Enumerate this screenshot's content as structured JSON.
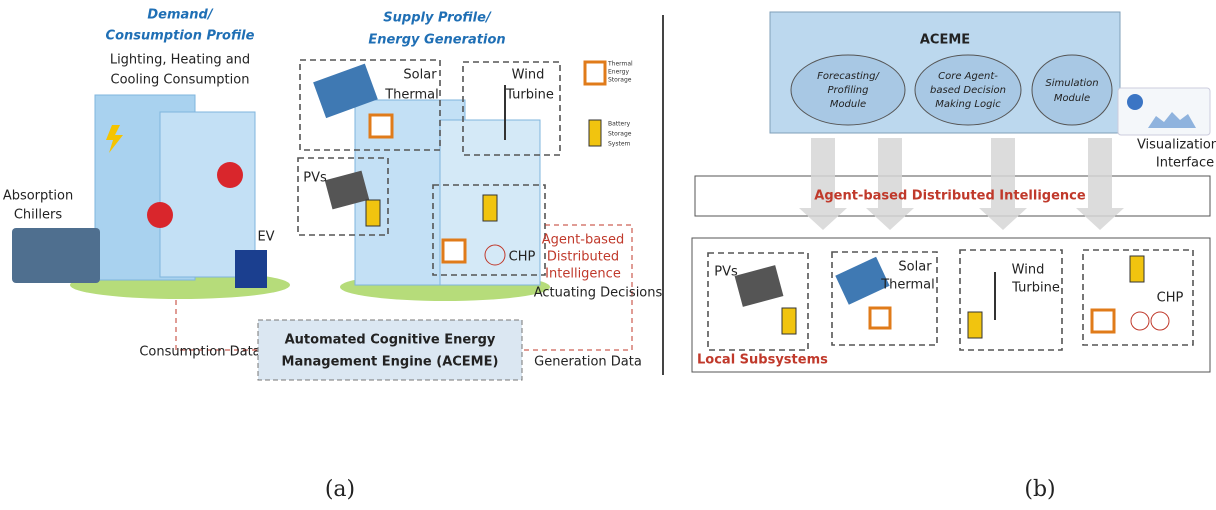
{
  "panel_a": {
    "demand_title": [
      "Demand/",
      "Consumption Profile"
    ],
    "consumption_label": [
      "Lighting, Heating and",
      "Cooling Consumption"
    ],
    "chillers_label": [
      "Absorption",
      "Chillers"
    ],
    "ev_label": "EV",
    "supply_title": [
      "Supply Profile/",
      "Energy Generation"
    ],
    "solar_label": [
      "Solar",
      "Thermal"
    ],
    "wind_label": [
      "Wind",
      "Turbine"
    ],
    "pvs_label": "PVs",
    "chp_label": "CHP",
    "legend_thermal": [
      "Thermal",
      "Energy",
      "Storage"
    ],
    "legend_battery": [
      "Battery",
      "Storage",
      "System"
    ],
    "agent_label": [
      "Agent-based",
      "Distributed",
      "Intelligence"
    ],
    "actuating_label": "Actuating Decisions",
    "consumption_data_label": "Consumption Data",
    "generation_data_label": "Generation Data",
    "engine_label": [
      "Automated Cognitive Energy",
      "Management Engine (ACEME)"
    ],
    "caption": "(a)"
  },
  "panel_b": {
    "aceme_title": "ACEME",
    "modules": [
      [
        "Forecasting/",
        "Profiling",
        "Module"
      ],
      [
        "Core Agent-",
        "based Decision",
        "Making Logic"
      ],
      [
        "Simulation",
        "Module"
      ]
    ],
    "visualization_label": [
      "Visualization",
      "Interface"
    ],
    "agent_band": "Agent-based Distributed Intelligence",
    "local_label": "Local Subsystems",
    "pvs_label": "PVs",
    "solar_label": [
      "Solar",
      "Thermal"
    ],
    "wind_label": [
      "Wind",
      "Turbine"
    ],
    "chp_label": "CHP",
    "caption": "(b)"
  }
}
